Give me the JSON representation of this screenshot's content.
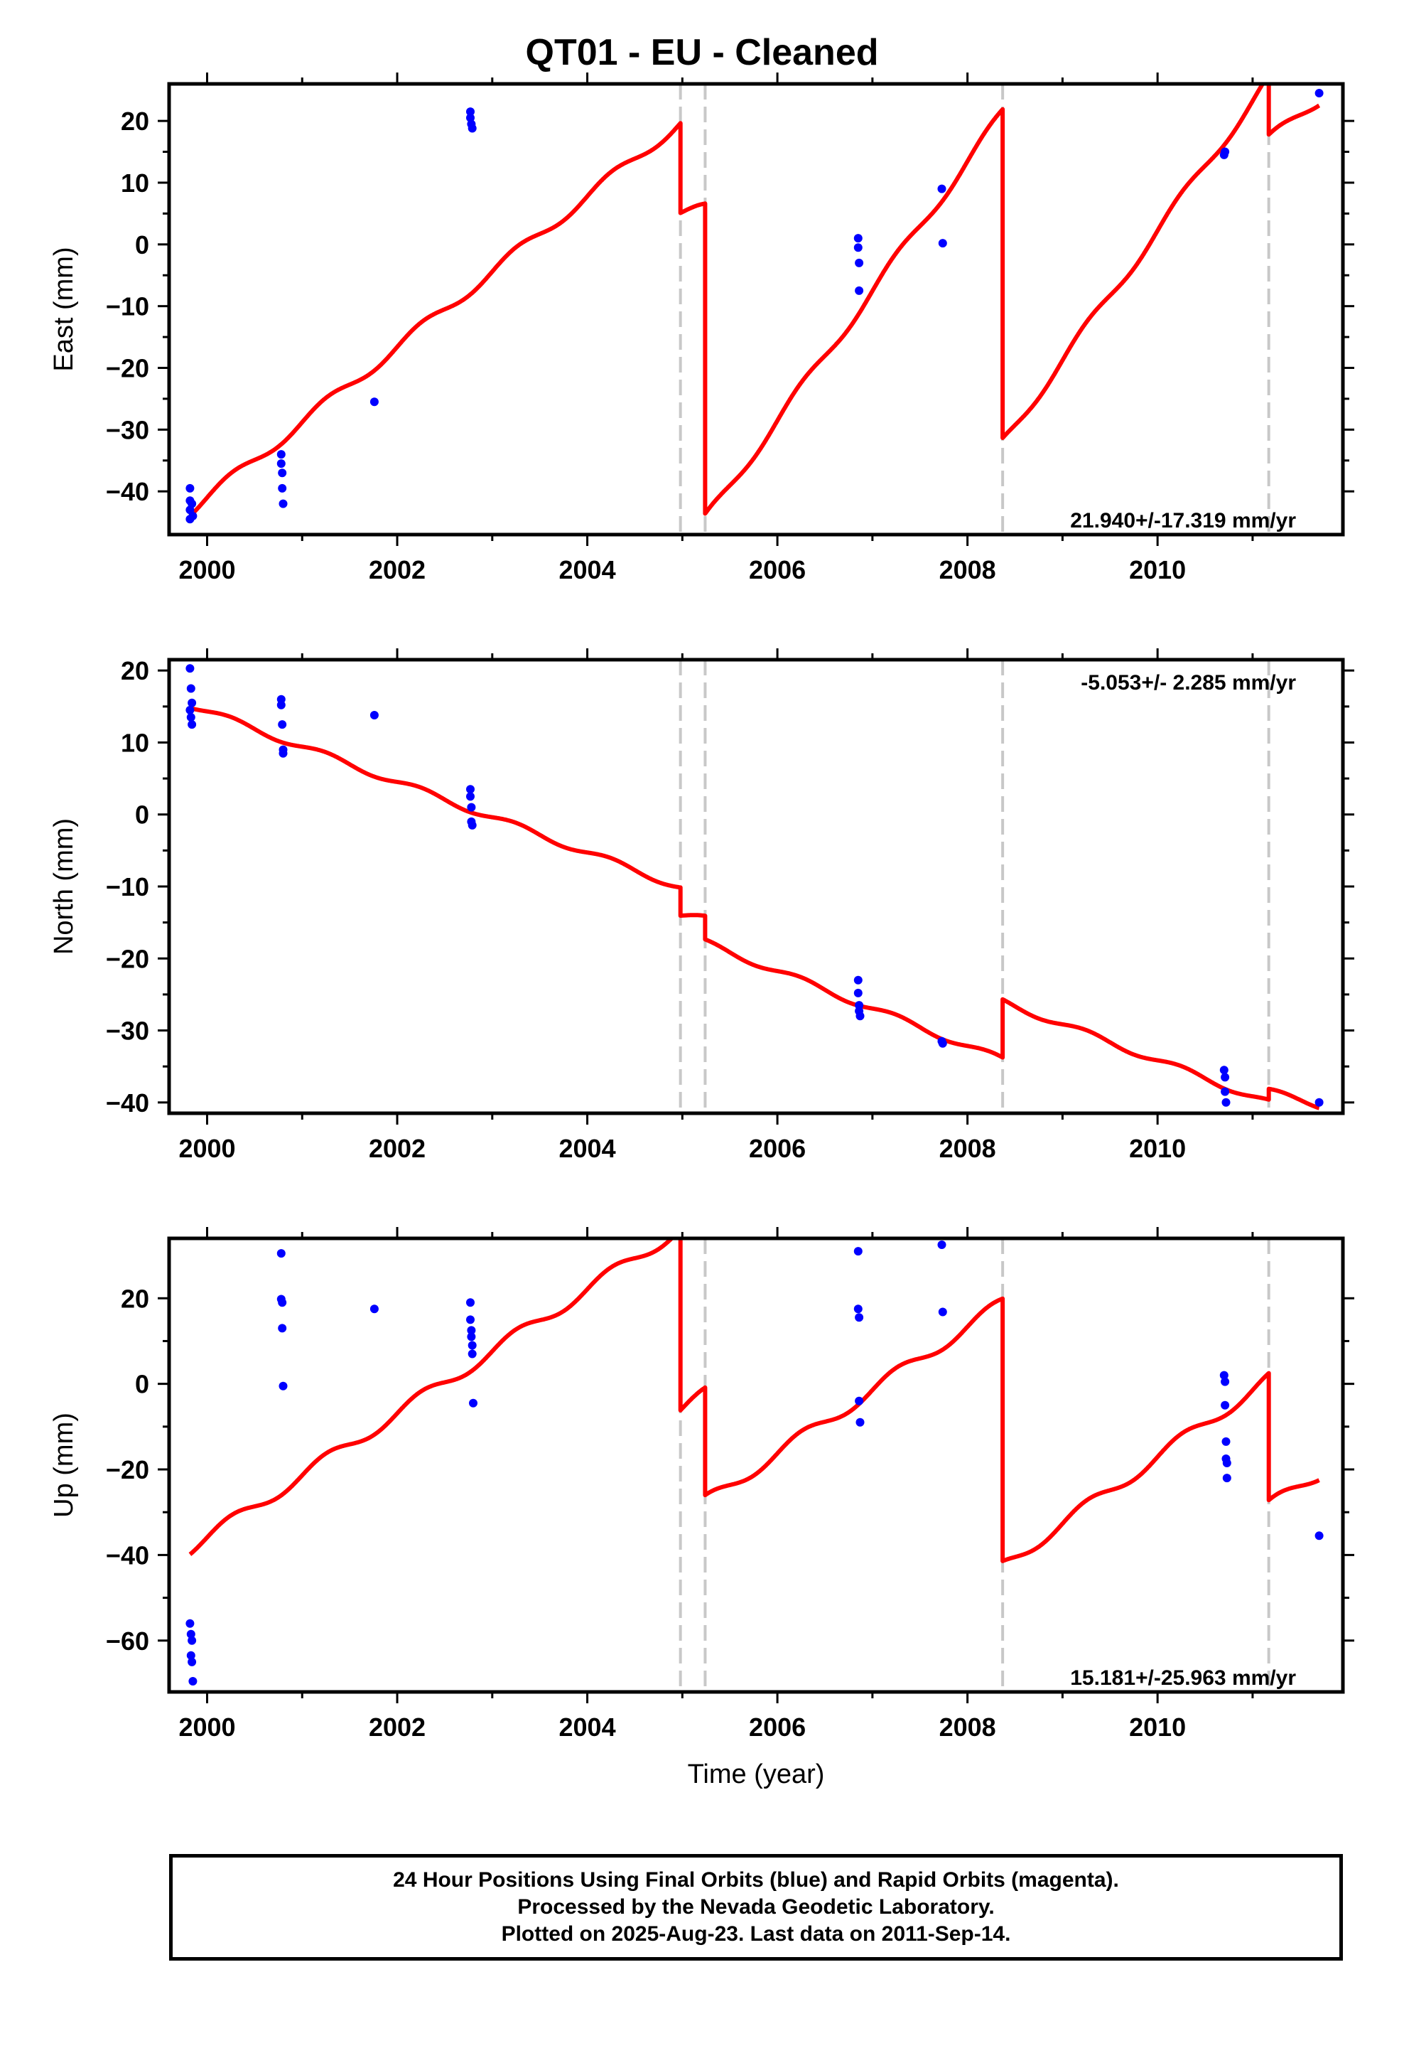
{
  "title": "QT01  - EU - Cleaned",
  "footer": {
    "line1": "24 Hour Positions Using Final Orbits (blue) and Rapid Orbits (magenta).",
    "line2": "Processed by the Nevada Geodetic Laboratory.",
    "line3": "Plotted on 2025-Aug-23. Last data on 2011-Sep-14."
  },
  "colors": {
    "model": "#ff0000",
    "final_orbit_points": "#0000ff",
    "event_lines": "#c8c8c8",
    "frame": "#000000"
  },
  "chart_data": [
    {
      "type": "scatter",
      "ylabel": "East (mm)",
      "xlabel": "",
      "xlim": [
        1999.6,
        2011.95
      ],
      "ylim": [
        -47,
        26
      ],
      "x_ticks": [
        2000,
        2002,
        2004,
        2006,
        2008,
        2010
      ],
      "y_ticks": [
        20,
        10,
        0,
        -10,
        -20,
        -30,
        -40
      ],
      "rate_label": "21.940+/-17.319 mm/yr",
      "rate_label_position": "bottom-right",
      "event_lines": [
        2004.98,
        2005.24,
        2008.37,
        2011.17
      ],
      "points": [
        [
          1999.82,
          -39.5
        ],
        [
          1999.82,
          -41.5
        ],
        [
          1999.82,
          -43
        ],
        [
          1999.82,
          -44.5
        ],
        [
          1999.84,
          -42
        ],
        [
          1999.85,
          -44
        ],
        [
          2000.78,
          -34
        ],
        [
          2000.78,
          -35.5
        ],
        [
          2000.79,
          -37
        ],
        [
          2000.79,
          -39.5
        ],
        [
          2000.8,
          -42
        ],
        [
          2001.76,
          -25.5
        ],
        [
          2002.77,
          21.5
        ],
        [
          2002.77,
          20.5
        ],
        [
          2002.78,
          19.5
        ],
        [
          2002.79,
          18.8
        ],
        [
          2006.85,
          1
        ],
        [
          2006.85,
          -0.5
        ],
        [
          2006.86,
          -3
        ],
        [
          2006.86,
          -7.5
        ],
        [
          2007.73,
          9
        ],
        [
          2007.74,
          0.2
        ],
        [
          2010.7,
          14.5
        ],
        [
          2010.71,
          15
        ],
        [
          2011.7,
          24.5
        ]
      ],
      "model": {
        "base": [
          {
            "from": 1999.82,
            "to": 2004.98,
            "y0": -43.2,
            "x0": 1999.82,
            "slope": 12.2
          },
          {
            "from": 2004.98,
            "to": 2005.24,
            "y0": 5.2,
            "x0": 2004.98,
            "slope": 2.0
          },
          {
            "from": 2005.24,
            "to": 2008.37,
            "y0": -44.5,
            "x0": 2005.24,
            "slope": 21.0
          },
          {
            "from": 2008.37,
            "to": 2011.17,
            "y0": -32.0,
            "x0": 2008.37,
            "slope": 21.0
          },
          {
            "from": 2011.17,
            "to": 2011.7,
            "y0": 17.0,
            "x0": 2011.17,
            "slope": 12.0
          }
        ],
        "amp_sin": 0.0,
        "amp_cos": 0.0,
        "amp_sin2": 0.9
      }
    },
    {
      "type": "scatter",
      "ylabel": "North (mm)",
      "xlabel": "",
      "xlim": [
        1999.6,
        2011.95
      ],
      "ylim": [
        -41.5,
        21.5
      ],
      "x_ticks": [
        2000,
        2002,
        2004,
        2006,
        2008,
        2010
      ],
      "y_ticks": [
        20,
        10,
        0,
        -10,
        -20,
        -30,
        -40
      ],
      "rate_label": "-5.053+/- 2.285 mm/yr",
      "rate_label_position": "top-right",
      "event_lines": [
        2004.98,
        2005.24,
        2008.37,
        2011.17
      ],
      "points": [
        [
          1999.82,
          20.3
        ],
        [
          1999.83,
          17.5
        ],
        [
          1999.84,
          15.5
        ],
        [
          1999.82,
          14.5
        ],
        [
          1999.83,
          13.5
        ],
        [
          1999.84,
          12.5
        ],
        [
          2000.78,
          16
        ],
        [
          2000.78,
          15.2
        ],
        [
          2000.79,
          12.5
        ],
        [
          2000.8,
          9
        ],
        [
          2000.8,
          8.5
        ],
        [
          2001.76,
          13.8
        ],
        [
          2002.77,
          3.5
        ],
        [
          2002.77,
          2.5
        ],
        [
          2002.78,
          1
        ],
        [
          2002.78,
          -1
        ],
        [
          2002.79,
          -1.5
        ],
        [
          2006.85,
          -23
        ],
        [
          2006.85,
          -24.8
        ],
        [
          2006.86,
          -26.5
        ],
        [
          2006.86,
          -27.3
        ],
        [
          2006.87,
          -28
        ],
        [
          2007.73,
          -31.5
        ],
        [
          2007.74,
          -31.8
        ],
        [
          2010.7,
          -35.5
        ],
        [
          2010.71,
          -36.5
        ],
        [
          2010.71,
          -38.5
        ],
        [
          2010.72,
          -40
        ],
        [
          2011.7,
          -40
        ]
      ],
      "model": {
        "base": [
          {
            "from": 1999.82,
            "to": 2004.98,
            "y0": 15.2,
            "x0": 1999.82,
            "slope": -4.9
          },
          {
            "from": 2004.98,
            "to": 2005.24,
            "y0": -14.0,
            "x0": 2004.98,
            "slope": -2.0
          },
          {
            "from": 2005.24,
            "to": 2008.37,
            "y0": -17.8,
            "x0": 2005.24,
            "slope": -5.2
          },
          {
            "from": 2008.37,
            "to": 2011.17,
            "y0": -26.0,
            "x0": 2008.37,
            "slope": -5.0
          },
          {
            "from": 2011.17,
            "to": 2011.7,
            "y0": -38.5,
            "x0": 2011.17,
            "slope": -3.5
          }
        ],
        "amp_sin": 0.0,
        "amp_cos": 0.0,
        "amp_sin2": 0.45
      }
    },
    {
      "type": "scatter",
      "ylabel": "Up (mm)",
      "xlabel": "Time (year)",
      "xlim": [
        1999.6,
        2011.95
      ],
      "ylim": [
        -72,
        34
      ],
      "x_ticks": [
        2000,
        2002,
        2004,
        2006,
        2008,
        2010
      ],
      "y_ticks": [
        20,
        0,
        -20,
        -40,
        -60
      ],
      "rate_label": "15.181+/-25.963 mm/yr",
      "rate_label_position": "bottom-right",
      "event_lines": [
        2004.98,
        2005.24,
        2008.37,
        2011.17
      ],
      "points": [
        [
          1999.82,
          -56
        ],
        [
          1999.83,
          -58.5
        ],
        [
          1999.84,
          -60
        ],
        [
          1999.83,
          -63.5
        ],
        [
          1999.84,
          -65
        ],
        [
          1999.85,
          -69.5
        ],
        [
          2000.78,
          30.5
        ],
        [
          2000.78,
          19.8
        ],
        [
          2000.79,
          19
        ],
        [
          2000.79,
          13
        ],
        [
          2000.8,
          -0.5
        ],
        [
          2001.76,
          17.5
        ],
        [
          2002.77,
          19
        ],
        [
          2002.77,
          15
        ],
        [
          2002.78,
          12.5
        ],
        [
          2002.78,
          11
        ],
        [
          2002.79,
          9
        ],
        [
          2002.79,
          7
        ],
        [
          2002.8,
          -4.5
        ],
        [
          2006.85,
          31
        ],
        [
          2006.85,
          17.5
        ],
        [
          2006.86,
          15.5
        ],
        [
          2006.86,
          -4
        ],
        [
          2006.87,
          -9
        ],
        [
          2007.73,
          32.5
        ],
        [
          2007.74,
          16.8
        ],
        [
          2010.7,
          2
        ],
        [
          2010.71,
          0.5
        ],
        [
          2010.71,
          -5
        ],
        [
          2010.72,
          -13.5
        ],
        [
          2010.72,
          -17.5
        ],
        [
          2010.73,
          -18.5
        ],
        [
          2010.73,
          -22
        ],
        [
          2011.7,
          -35.5
        ]
      ],
      "model": {
        "base": [
          {
            "from": 1999.82,
            "to": 2004.98,
            "y0": -38.5,
            "x0": 1999.82,
            "slope": 14.5
          },
          {
            "from": 2004.98,
            "to": 2005.24,
            "y0": -6.0,
            "x0": 2004.98,
            "slope": 14.0
          },
          {
            "from": 2005.24,
            "to": 2008.37,
            "y0": -27.5,
            "x0": 2005.24,
            "slope": 14.8
          },
          {
            "from": 2008.37,
            "to": 2011.17,
            "y0": -42.5,
            "x0": 2008.37,
            "slope": 15.6
          },
          {
            "from": 2011.17,
            "to": 2011.7,
            "y0": -28.5,
            "x0": 2011.17,
            "slope": 14.0
          }
        ],
        "amp_sin": 0.0,
        "amp_cos": 0.0,
        "amp_sin2": 1.5
      }
    }
  ]
}
